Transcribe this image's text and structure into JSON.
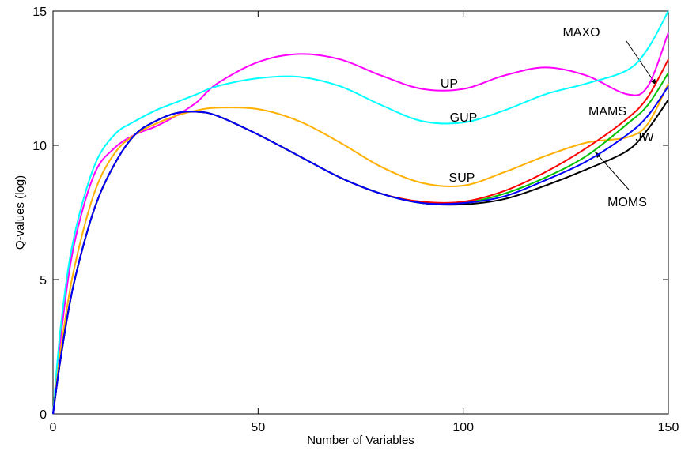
{
  "chart_data": {
    "type": "line",
    "xlabel": "Number of Variables",
    "ylabel": "Q-values (log)",
    "xlim": [
      0,
      150
    ],
    "ylim": [
      0,
      15
    ],
    "xticks": [
      0,
      50,
      100,
      150
    ],
    "yticks": [
      0,
      5,
      10,
      15
    ],
    "grid": false,
    "x": [
      0,
      2,
      5,
      10,
      15,
      20,
      25,
      30,
      35,
      40,
      50,
      60,
      70,
      80,
      90,
      100,
      110,
      120,
      130,
      140,
      145,
      150
    ],
    "series": [
      {
        "name": "UP",
        "color": "#ff00ff",
        "values": [
          0,
          3.0,
          6.2,
          8.9,
          9.9,
          10.4,
          10.7,
          11.1,
          11.6,
          12.3,
          13.1,
          13.4,
          13.2,
          12.6,
          12.1,
          12.1,
          12.6,
          12.9,
          12.6,
          11.9,
          12.2,
          14.2
        ]
      },
      {
        "name": "GUP",
        "color": "#00ffff",
        "values": [
          0,
          3.4,
          6.5,
          9.2,
          10.4,
          10.9,
          11.3,
          11.6,
          11.9,
          12.2,
          12.5,
          12.55,
          12.2,
          11.5,
          10.9,
          10.85,
          11.3,
          11.9,
          12.3,
          12.8,
          13.6,
          15.0
        ]
      },
      {
        "name": "SUP",
        "color": "#ffb000",
        "values": [
          0,
          2.5,
          5.3,
          8.2,
          9.7,
          10.4,
          10.8,
          11.1,
          11.3,
          11.4,
          11.35,
          10.9,
          10.1,
          9.2,
          8.6,
          8.5,
          9.0,
          9.6,
          10.1,
          10.3,
          10.8,
          12.3
        ]
      },
      {
        "name": "MAXO",
        "color": "#00c000",
        "values": [
          0,
          2.2,
          4.8,
          7.6,
          9.3,
          10.4,
          10.9,
          11.2,
          11.25,
          11.1,
          10.4,
          9.6,
          8.8,
          8.2,
          7.85,
          7.85,
          8.2,
          8.8,
          9.6,
          10.8,
          11.5,
          12.7
        ]
      },
      {
        "name": "MAMS",
        "color": "#ff0000",
        "values": [
          0,
          2.2,
          4.8,
          7.6,
          9.3,
          10.4,
          10.9,
          11.2,
          11.25,
          11.1,
          10.4,
          9.6,
          8.8,
          8.2,
          7.9,
          7.9,
          8.3,
          9.0,
          9.9,
          11.0,
          11.8,
          13.2
        ]
      },
      {
        "name": "JW",
        "color": "#000000",
        "values": [
          0,
          2.2,
          4.8,
          7.6,
          9.3,
          10.4,
          10.9,
          11.2,
          11.25,
          11.1,
          10.4,
          9.6,
          8.8,
          8.2,
          7.85,
          7.8,
          8.0,
          8.5,
          9.1,
          9.8,
          10.6,
          11.7
        ]
      },
      {
        "name": "MOMS",
        "color": "#0000ff",
        "values": [
          0,
          2.2,
          4.8,
          7.6,
          9.3,
          10.4,
          10.9,
          11.2,
          11.25,
          11.1,
          10.4,
          9.6,
          8.8,
          8.2,
          7.85,
          7.85,
          8.1,
          8.7,
          9.4,
          10.4,
          11.1,
          12.2
        ]
      }
    ]
  }
}
